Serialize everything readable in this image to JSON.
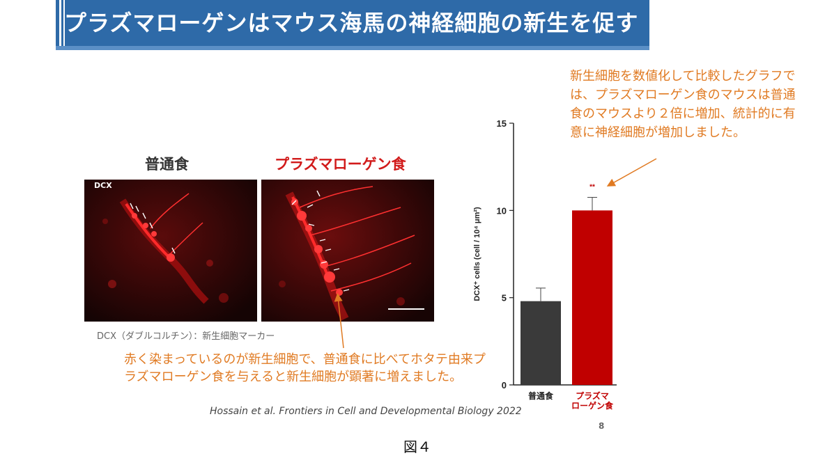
{
  "slide": {
    "title": "プラズマローゲンはマウス海馬の神経細胞の新生を促す",
    "figure_label": "図４",
    "page_number": "8",
    "citation": "Hossain et al. Frontiers in Cell and Developmental Biology 2022"
  },
  "micrographs": {
    "label_normal": "普通食",
    "label_plasmalogen": "プラズマローゲン食",
    "stain_tag": "DCX",
    "caption": "DCX（ダブルコルチン）：新生細胞マーカー"
  },
  "annotations": {
    "micrograph_note": "赤く染まっているのが新生細胞で、普通食に比べてホタテ由来プラズマローゲン食を与えると新生細胞が顕著に増えました。",
    "chart_note": "新生細胞を数値化して比較したグラフでは、プラズマローゲン食のマウスは普通食のマウスより２倍に増加、統計的に有意に神経細胞が増加しました。"
  },
  "colors": {
    "banner": "#2e6aa8",
    "annotation": "#e07a22",
    "bar_normal": "#3a3a3a",
    "bar_plasmalogen": "#c00000"
  },
  "chart_data": {
    "type": "bar",
    "categories": [
      "普通食",
      "プラズマローゲン食"
    ],
    "category_lines": [
      [
        "普通食"
      ],
      [
        "プラズマ",
        "ローゲン食"
      ]
    ],
    "values": [
      4.8,
      10.0
    ],
    "errors": [
      0.75,
      0.75
    ],
    "significance": [
      "",
      "**"
    ],
    "ylabel": "DCX⁺ cells (cell / 10⁴ μm²)",
    "ylim": [
      0,
      15
    ],
    "yticks": [
      0,
      5,
      10,
      15
    ],
    "grid": false
  }
}
